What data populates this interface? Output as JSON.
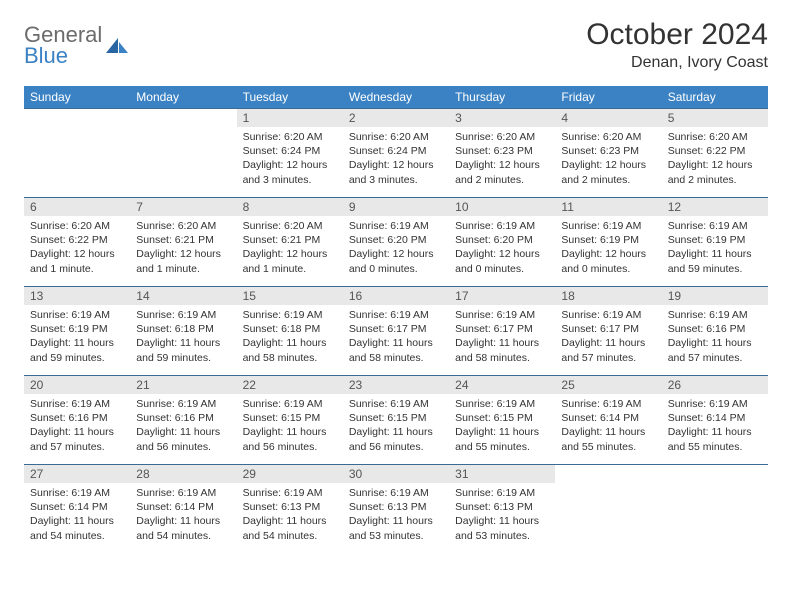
{
  "logo": {
    "general": "General",
    "blue": "Blue"
  },
  "title": "October 2024",
  "location": "Denan, Ivory Coast",
  "weekdays": [
    "Sunday",
    "Monday",
    "Tuesday",
    "Wednesday",
    "Thursday",
    "Friday",
    "Saturday"
  ],
  "colors": {
    "header_bg": "#3b82c4",
    "header_text": "#ffffff",
    "daynum_bg": "#e8e8e8",
    "row_border": "#3b6a94",
    "logo_gray": "#6b6b6b",
    "logo_blue": "#3b82c4"
  },
  "weeks": [
    [
      null,
      null,
      {
        "n": "1",
        "sr": "Sunrise: 6:20 AM",
        "ss": "Sunset: 6:24 PM",
        "dl": "Daylight: 12 hours and 3 minutes."
      },
      {
        "n": "2",
        "sr": "Sunrise: 6:20 AM",
        "ss": "Sunset: 6:24 PM",
        "dl": "Daylight: 12 hours and 3 minutes."
      },
      {
        "n": "3",
        "sr": "Sunrise: 6:20 AM",
        "ss": "Sunset: 6:23 PM",
        "dl": "Daylight: 12 hours and 2 minutes."
      },
      {
        "n": "4",
        "sr": "Sunrise: 6:20 AM",
        "ss": "Sunset: 6:23 PM",
        "dl": "Daylight: 12 hours and 2 minutes."
      },
      {
        "n": "5",
        "sr": "Sunrise: 6:20 AM",
        "ss": "Sunset: 6:22 PM",
        "dl": "Daylight: 12 hours and 2 minutes."
      }
    ],
    [
      {
        "n": "6",
        "sr": "Sunrise: 6:20 AM",
        "ss": "Sunset: 6:22 PM",
        "dl": "Daylight: 12 hours and 1 minute."
      },
      {
        "n": "7",
        "sr": "Sunrise: 6:20 AM",
        "ss": "Sunset: 6:21 PM",
        "dl": "Daylight: 12 hours and 1 minute."
      },
      {
        "n": "8",
        "sr": "Sunrise: 6:20 AM",
        "ss": "Sunset: 6:21 PM",
        "dl": "Daylight: 12 hours and 1 minute."
      },
      {
        "n": "9",
        "sr": "Sunrise: 6:19 AM",
        "ss": "Sunset: 6:20 PM",
        "dl": "Daylight: 12 hours and 0 minutes."
      },
      {
        "n": "10",
        "sr": "Sunrise: 6:19 AM",
        "ss": "Sunset: 6:20 PM",
        "dl": "Daylight: 12 hours and 0 minutes."
      },
      {
        "n": "11",
        "sr": "Sunrise: 6:19 AM",
        "ss": "Sunset: 6:19 PM",
        "dl": "Daylight: 12 hours and 0 minutes."
      },
      {
        "n": "12",
        "sr": "Sunrise: 6:19 AM",
        "ss": "Sunset: 6:19 PM",
        "dl": "Daylight: 11 hours and 59 minutes."
      }
    ],
    [
      {
        "n": "13",
        "sr": "Sunrise: 6:19 AM",
        "ss": "Sunset: 6:19 PM",
        "dl": "Daylight: 11 hours and 59 minutes."
      },
      {
        "n": "14",
        "sr": "Sunrise: 6:19 AM",
        "ss": "Sunset: 6:18 PM",
        "dl": "Daylight: 11 hours and 59 minutes."
      },
      {
        "n": "15",
        "sr": "Sunrise: 6:19 AM",
        "ss": "Sunset: 6:18 PM",
        "dl": "Daylight: 11 hours and 58 minutes."
      },
      {
        "n": "16",
        "sr": "Sunrise: 6:19 AM",
        "ss": "Sunset: 6:17 PM",
        "dl": "Daylight: 11 hours and 58 minutes."
      },
      {
        "n": "17",
        "sr": "Sunrise: 6:19 AM",
        "ss": "Sunset: 6:17 PM",
        "dl": "Daylight: 11 hours and 58 minutes."
      },
      {
        "n": "18",
        "sr": "Sunrise: 6:19 AM",
        "ss": "Sunset: 6:17 PM",
        "dl": "Daylight: 11 hours and 57 minutes."
      },
      {
        "n": "19",
        "sr": "Sunrise: 6:19 AM",
        "ss": "Sunset: 6:16 PM",
        "dl": "Daylight: 11 hours and 57 minutes."
      }
    ],
    [
      {
        "n": "20",
        "sr": "Sunrise: 6:19 AM",
        "ss": "Sunset: 6:16 PM",
        "dl": "Daylight: 11 hours and 57 minutes."
      },
      {
        "n": "21",
        "sr": "Sunrise: 6:19 AM",
        "ss": "Sunset: 6:16 PM",
        "dl": "Daylight: 11 hours and 56 minutes."
      },
      {
        "n": "22",
        "sr": "Sunrise: 6:19 AM",
        "ss": "Sunset: 6:15 PM",
        "dl": "Daylight: 11 hours and 56 minutes."
      },
      {
        "n": "23",
        "sr": "Sunrise: 6:19 AM",
        "ss": "Sunset: 6:15 PM",
        "dl": "Daylight: 11 hours and 56 minutes."
      },
      {
        "n": "24",
        "sr": "Sunrise: 6:19 AM",
        "ss": "Sunset: 6:15 PM",
        "dl": "Daylight: 11 hours and 55 minutes."
      },
      {
        "n": "25",
        "sr": "Sunrise: 6:19 AM",
        "ss": "Sunset: 6:14 PM",
        "dl": "Daylight: 11 hours and 55 minutes."
      },
      {
        "n": "26",
        "sr": "Sunrise: 6:19 AM",
        "ss": "Sunset: 6:14 PM",
        "dl": "Daylight: 11 hours and 55 minutes."
      }
    ],
    [
      {
        "n": "27",
        "sr": "Sunrise: 6:19 AM",
        "ss": "Sunset: 6:14 PM",
        "dl": "Daylight: 11 hours and 54 minutes."
      },
      {
        "n": "28",
        "sr": "Sunrise: 6:19 AM",
        "ss": "Sunset: 6:14 PM",
        "dl": "Daylight: 11 hours and 54 minutes."
      },
      {
        "n": "29",
        "sr": "Sunrise: 6:19 AM",
        "ss": "Sunset: 6:13 PM",
        "dl": "Daylight: 11 hours and 54 minutes."
      },
      {
        "n": "30",
        "sr": "Sunrise: 6:19 AM",
        "ss": "Sunset: 6:13 PM",
        "dl": "Daylight: 11 hours and 53 minutes."
      },
      {
        "n": "31",
        "sr": "Sunrise: 6:19 AM",
        "ss": "Sunset: 6:13 PM",
        "dl": "Daylight: 11 hours and 53 minutes."
      },
      null,
      null
    ]
  ]
}
